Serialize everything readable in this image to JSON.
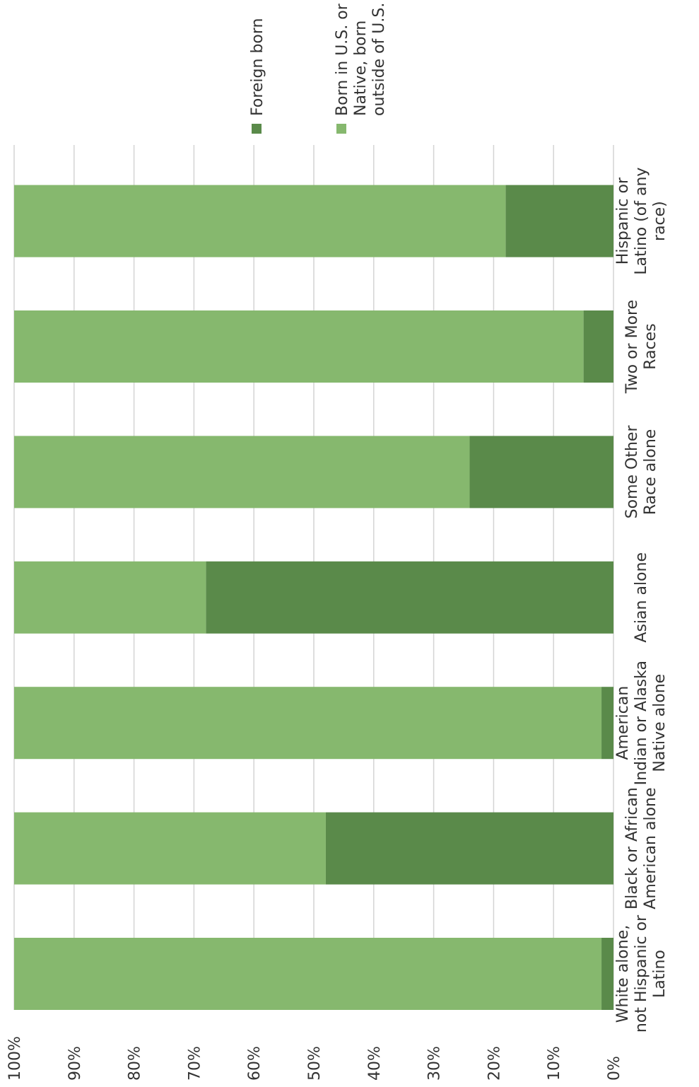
{
  "chart_data": {
    "type": "bar",
    "stacked": true,
    "percent_stacked": true,
    "orientation": "rotated 90° clockwise on the page (value axis runs top 100% to bottom 0%)",
    "categories": [
      [
        "White alone,",
        "not Hispanic or",
        "Latino"
      ],
      [
        "Black or African",
        "American alone"
      ],
      [
        "American",
        "Indian or Alaska",
        "Native alone"
      ],
      [
        "Asian alone"
      ],
      [
        "Some Other",
        "Race alone"
      ],
      [
        "Two or More",
        "Races"
      ],
      [
        "Hispanic or",
        "Latino (of any",
        "race)"
      ]
    ],
    "series": [
      {
        "name": "Foreign born",
        "color": "#5a8a4a",
        "values": [
          2,
          48,
          2,
          68,
          24,
          5,
          18
        ]
      },
      {
        "name": [
          "Born in U.S. or",
          "Native, born",
          "outside of U.S."
        ],
        "color": "#86b86e",
        "values": [
          98,
          52,
          98,
          32,
          76,
          95,
          82
        ]
      }
    ],
    "y_ticks": [
      "0%",
      "10%",
      "20%",
      "30%",
      "40%",
      "50%",
      "60%",
      "70%",
      "80%",
      "90%",
      "100%"
    ],
    "ylim": [
      0,
      100
    ],
    "grid": true,
    "legend_position": "right"
  }
}
